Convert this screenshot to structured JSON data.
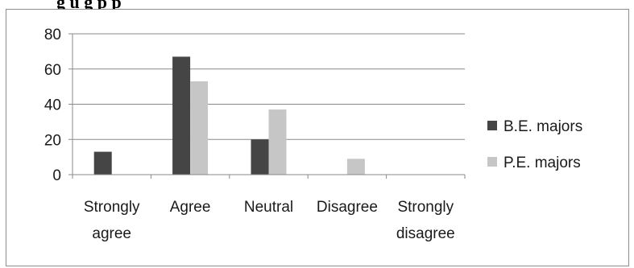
{
  "title_fragment": "g  u   g   p    p",
  "chart_data": {
    "type": "bar",
    "categories": [
      [
        "Strongly",
        "agree"
      ],
      [
        "Agree"
      ],
      [
        "Neutral"
      ],
      [
        "Disagree"
      ],
      [
        "Strongly",
        "disagree"
      ]
    ],
    "series": [
      {
        "name": "B.E. majors",
        "color": "#454545",
        "values": [
          13,
          67,
          20,
          0,
          0
        ]
      },
      {
        "name": "P.E. majors",
        "color": "#c6c6c6",
        "values": [
          0,
          53,
          37,
          9,
          0
        ]
      }
    ],
    "yticks": [
      0,
      20,
      40,
      60,
      80
    ],
    "ylim": [
      0,
      80
    ],
    "grid": true,
    "legend": "right"
  }
}
